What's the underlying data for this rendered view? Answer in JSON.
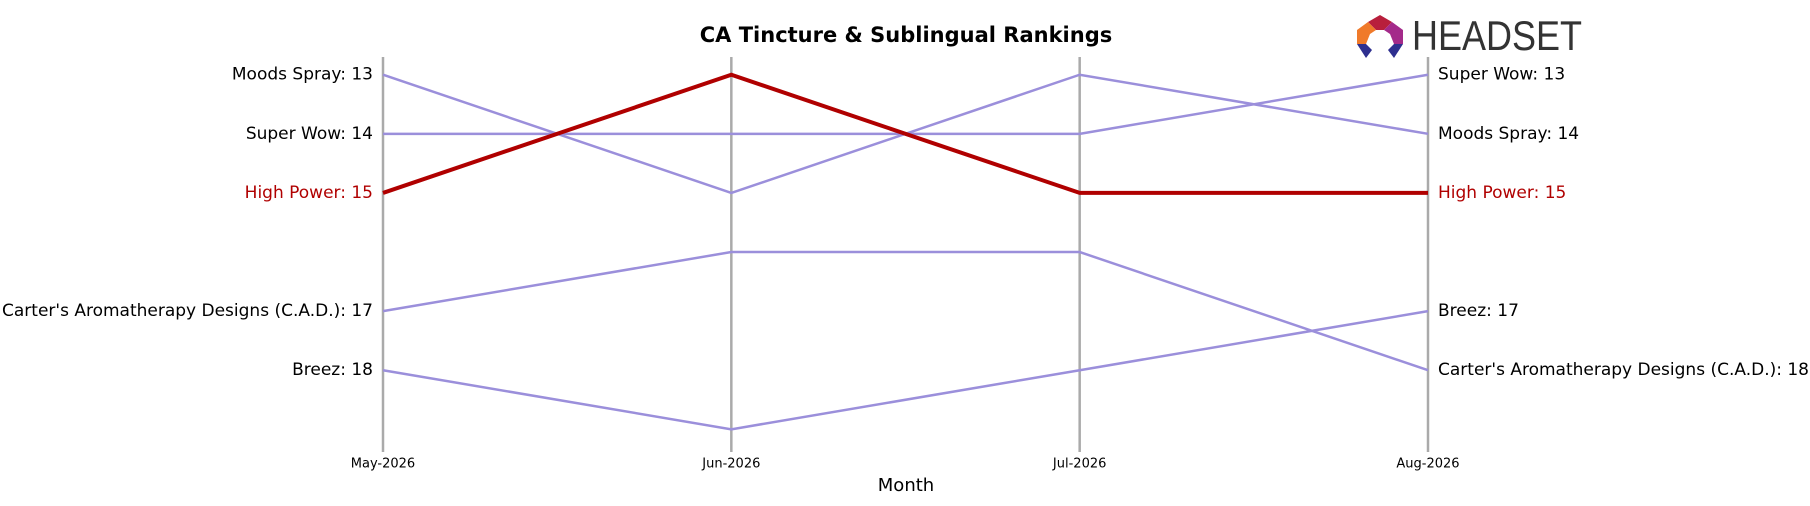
{
  "chart_data": {
    "type": "bump",
    "title": "CA Tincture & Sublingual Rankings",
    "logo_text": "HEADSET",
    "x_label": "Month",
    "categories": [
      "May-2026",
      "Jun-2026",
      "Jul-2026",
      "Aug-2026"
    ],
    "ylim": [
      19.35,
      12.7
    ],
    "inverted": true,
    "grid": true,
    "series": [
      {
        "name": "Moods Spray",
        "color": "#9b8fdb",
        "highlight": false,
        "values": [
          13,
          15,
          13,
          14
        ],
        "value_labels": [
          "Moods Spray: 13",
          null,
          null,
          "Moods Spray: 14"
        ]
      },
      {
        "name": "Super Wow",
        "color": "#9b8fdb",
        "highlight": false,
        "values": [
          14,
          14,
          14,
          13
        ],
        "value_labels": [
          "Super Wow: 14",
          null,
          null,
          "Super Wow: 13"
        ]
      },
      {
        "name": "Carter's Aromatherapy Designs (C.A.D.)",
        "color": "#9b8fdb",
        "highlight": false,
        "values": [
          17,
          16,
          16,
          18
        ],
        "value_labels": [
          "Carter's Aromatherapy Designs (C.A.D.): 17",
          null,
          null,
          "Carter's Aromatherapy Designs (C.A.D.): 18"
        ]
      },
      {
        "name": "Breez",
        "color": "#9b8fdb",
        "highlight": false,
        "values": [
          18,
          19,
          18,
          17
        ],
        "value_labels": [
          "Breez: 18",
          null,
          null,
          "Breez: 17"
        ]
      },
      {
        "name": "High Power",
        "color": "#b00000",
        "highlight": true,
        "values": [
          15,
          13,
          15,
          15
        ],
        "value_labels": [
          "High Power: 15",
          null,
          null,
          "High Power: 15"
        ]
      }
    ]
  }
}
